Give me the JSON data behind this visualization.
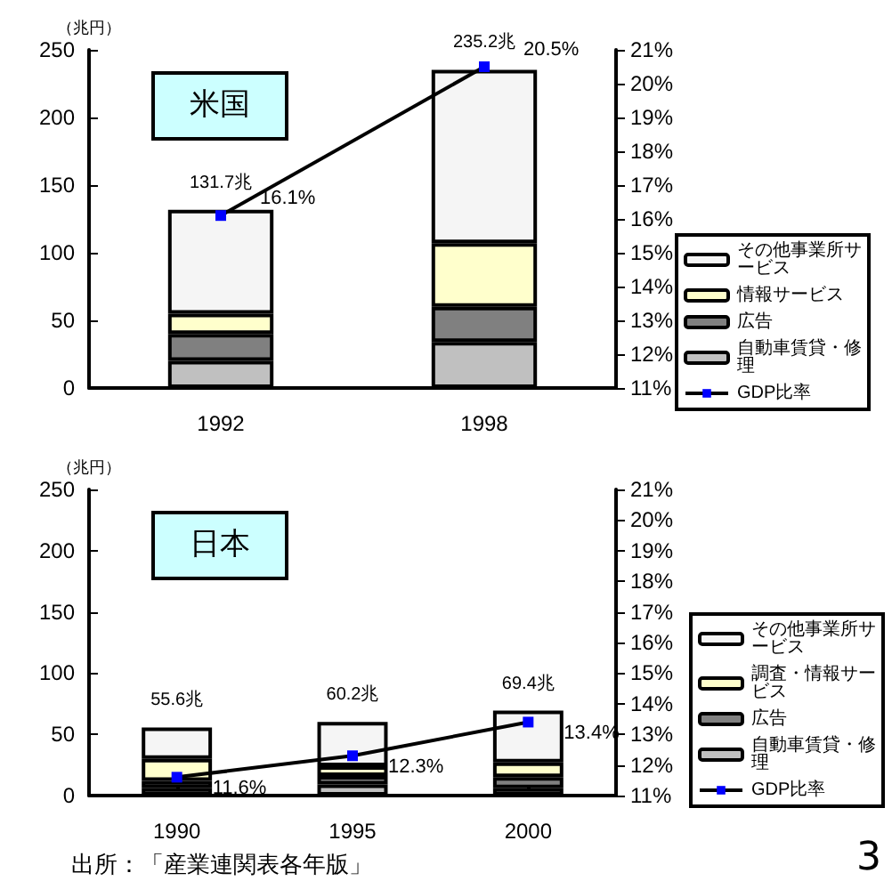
{
  "chart_data": [
    {
      "type": "bar",
      "title": "米国",
      "ylabel": "（兆円）",
      "categories": [
        "1992",
        "1998"
      ],
      "stacked": true,
      "legend": "right",
      "grid": false,
      "ylim": [
        0,
        250
      ],
      "yticks": [
        0,
        50,
        100,
        150,
        200,
        250
      ],
      "y2lim": [
        11,
        21
      ],
      "y2ticks": [
        {
          "value": 11,
          "label": "11%"
        },
        {
          "value": 12,
          "label": "12%"
        },
        {
          "value": 13,
          "label": "13%"
        },
        {
          "value": 14,
          "label": "14%"
        },
        {
          "value": 15,
          "label": "15%"
        },
        {
          "value": 16,
          "label": "16%"
        },
        {
          "value": 17,
          "label": "17%"
        },
        {
          "value": 18,
          "label": "18%"
        },
        {
          "value": 19,
          "label": "19%"
        },
        {
          "value": 20,
          "label": "20%"
        },
        {
          "value": 21,
          "label": "21%"
        }
      ],
      "series": [
        {
          "name": "自動車賃貸・修理",
          "color": "#c0c0c0",
          "values": [
            20,
            34
          ]
        },
        {
          "name": "広告",
          "color": "#808080",
          "values": [
            20,
            26
          ]
        },
        {
          "name": "情報サービス",
          "color": "#ffffcc",
          "values": [
            15,
            47
          ]
        },
        {
          "name": "その他事業所サービス",
          "color": "#f5f5f5",
          "values": [
            76.7,
            128.2
          ]
        },
        {
          "name": "GDP比率",
          "type": "line",
          "axis": "y2",
          "color": "#000000",
          "colors": [
            "#0000ff",
            "#0000ff"
          ],
          "marker": "square",
          "values": [
            16.1,
            20.5
          ],
          "value_labels": [
            "16.1%",
            "20.5%"
          ]
        }
      ],
      "totals": [
        "131.7兆",
        "235.2兆"
      ]
    },
    {
      "type": "bar",
      "title": "日本",
      "ylabel": "（兆円）",
      "categories": [
        "1990",
        "1995",
        "2000"
      ],
      "stacked": true,
      "legend": "right",
      "grid": false,
      "ylim": [
        0,
        250
      ],
      "yticks": [
        0,
        50,
        100,
        150,
        200,
        250
      ],
      "y2lim": [
        11,
        21
      ],
      "y2ticks": [
        {
          "value": 11,
          "label": "11%"
        },
        {
          "value": 12,
          "label": "12%"
        },
        {
          "value": 13,
          "label": "13%"
        },
        {
          "value": 14,
          "label": "14%"
        },
        {
          "value": 15,
          "label": "15%"
        },
        {
          "value": 16,
          "label": "16%"
        },
        {
          "value": 17,
          "label": "17%"
        },
        {
          "value": 18,
          "label": "18%"
        },
        {
          "value": 19,
          "label": "19%"
        },
        {
          "value": 20,
          "label": "20%"
        },
        {
          "value": 21,
          "label": "21%"
        }
      ],
      "series": [
        {
          "name": "自動車賃貸・修理",
          "color": "#c0c0c0",
          "values": [
            6,
            9,
            6
          ]
        },
        {
          "name": "広告",
          "color": "#808080",
          "values": [
            6,
            7,
            9
          ]
        },
        {
          "name": "調査・情報サービス",
          "color": "#ffffcc",
          "values": [
            18,
            8,
            12
          ]
        },
        {
          "name": "その他事業所サービス",
          "color": "#f5f5f5",
          "values": [
            25.6,
            36.2,
            42.4
          ]
        },
        {
          "name": "GDP比率",
          "type": "line",
          "axis": "y2",
          "color": "#000000",
          "colors": [
            "#0000ff",
            "#0000ff",
            "#0000ff"
          ],
          "marker": "square",
          "values": [
            11.6,
            12.3,
            13.4
          ],
          "value_labels": [
            "11.6%",
            "12.3%",
            "13.4%"
          ]
        }
      ],
      "totals": [
        "55.6兆",
        "60.2兆",
        "69.4兆"
      ],
      "annotations": [
        "出所：「産業連関表各年版」",
        "3"
      ]
    }
  ]
}
